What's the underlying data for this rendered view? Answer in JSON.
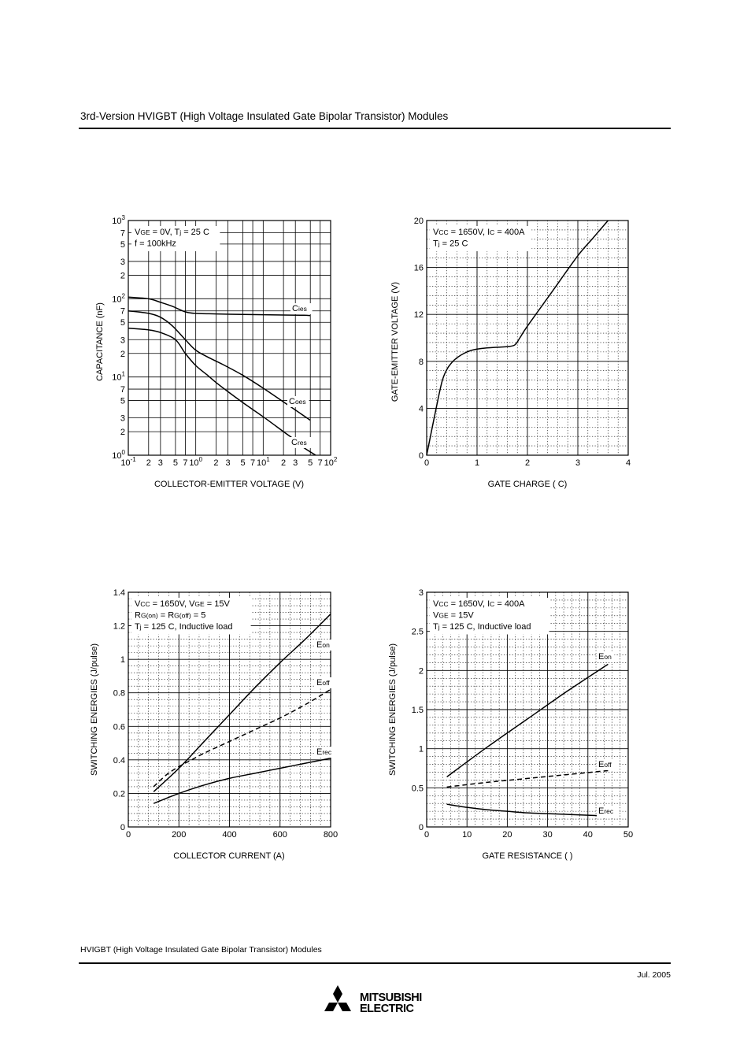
{
  "header": {
    "title": "3rd-Version HVIGBT (High Voltage Insulated Gate Bipolar Transistor) Modules"
  },
  "footer": {
    "text": "HVIGBT (High Voltage Insulated Gate Bipolar Transistor) Modules",
    "date": "Jul. 2005",
    "brand_line1": "MITSUBISHI",
    "brand_line2": "ELECTRIC"
  },
  "chart_data": [
    {
      "id": "capacitance",
      "type": "line",
      "xscale": "log",
      "yscale": "log",
      "xlim": [
        0.1,
        100
      ],
      "ylim": [
        1,
        1000
      ],
      "xlabel": "COLLECTOR-EMITTER VOLTAGE (V)",
      "ylabel": "CAPACITANCE (nF)",
      "annotations": [
        [
          {
            "t": "V"
          },
          {
            "t": "GE",
            "sub": true
          },
          {
            "t": " = 0V, T"
          },
          {
            "t": "j",
            "sub": true
          },
          {
            "t": " = 25 C"
          }
        ],
        [
          {
            "t": "f = 100kHz"
          }
        ]
      ],
      "xticks": [
        {
          "v": 0.1,
          "base": "10",
          "exp": "-1"
        },
        {
          "v": 0.2,
          "l": "2"
        },
        {
          "v": 0.3,
          "l": "3"
        },
        {
          "v": 0.5,
          "l": "5"
        },
        {
          "v": 0.7,
          "l": "7"
        },
        {
          "v": 1,
          "base": "10",
          "exp": "0"
        },
        {
          "v": 2,
          "l": "2"
        },
        {
          "v": 3,
          "l": "3"
        },
        {
          "v": 5,
          "l": "5"
        },
        {
          "v": 7,
          "l": "7"
        },
        {
          "v": 10,
          "base": "10",
          "exp": "1"
        },
        {
          "v": 20,
          "l": "2"
        },
        {
          "v": 30,
          "l": "3"
        },
        {
          "v": 50,
          "l": "5"
        },
        {
          "v": 70,
          "l": "7"
        },
        {
          "v": 100,
          "base": "10",
          "exp": "2"
        }
      ],
      "yticks": [
        {
          "v": 1,
          "base": "10",
          "exp": "0"
        },
        {
          "v": 2,
          "l": "2"
        },
        {
          "v": 3,
          "l": "3"
        },
        {
          "v": 5,
          "l": "5"
        },
        {
          "v": 7,
          "l": "7"
        },
        {
          "v": 10,
          "base": "10",
          "exp": "1"
        },
        {
          "v": 20,
          "l": "2"
        },
        {
          "v": 30,
          "l": "3"
        },
        {
          "v": 50,
          "l": "5"
        },
        {
          "v": 70,
          "l": "7"
        },
        {
          "v": 100,
          "base": "10",
          "exp": "2"
        },
        {
          "v": 200,
          "l": "2"
        },
        {
          "v": 300,
          "l": "3"
        },
        {
          "v": 500,
          "l": "5"
        },
        {
          "v": 700,
          "l": "7"
        },
        {
          "v": 1000,
          "base": "10",
          "exp": "3"
        }
      ],
      "series": [
        {
          "label": "C",
          "sub": "ies",
          "dashed": false,
          "x": [
            0.1,
            0.2,
            0.3,
            0.45,
            0.7,
            1,
            2,
            5,
            10,
            20,
            40,
            50
          ],
          "y": [
            105,
            100,
            90,
            80,
            68,
            65,
            64,
            63,
            62.5,
            62,
            61.5,
            61
          ]
        },
        {
          "label": "C",
          "sub": "oes",
          "dashed": false,
          "x": [
            0.1,
            0.2,
            0.3,
            0.45,
            0.7,
            1,
            1.5,
            2.5,
            5,
            10,
            20,
            50
          ],
          "y": [
            70,
            65,
            58,
            45,
            30,
            22,
            18,
            14.5,
            10.5,
            7.2,
            4.8,
            2.8
          ]
        },
        {
          "label": "C",
          "sub": "res",
          "dashed": false,
          "x": [
            0.1,
            0.2,
            0.3,
            0.5,
            0.7,
            1,
            1.5,
            2,
            3,
            5,
            10,
            20,
            30,
            40,
            60
          ],
          "y": [
            42,
            40,
            37,
            30,
            20,
            14,
            10.5,
            8.5,
            6.5,
            4.7,
            3.1,
            2,
            1.55,
            1.25,
            1
          ]
        }
      ]
    },
    {
      "id": "gate_charge",
      "type": "line",
      "xlim": [
        0,
        4
      ],
      "ylim": [
        0,
        20
      ],
      "xlabel": "GATE CHARGE (  C)",
      "ylabel": "GATE-EMITTER VOLTAGE (V)",
      "annotations": [
        [
          {
            "t": "V"
          },
          {
            "t": "CC",
            "sub": true
          },
          {
            "t": " = 1650V, I"
          },
          {
            "t": "C",
            "sub": true
          },
          {
            "t": " = 400A"
          }
        ],
        [
          {
            "t": "T"
          },
          {
            "t": "j",
            "sub": true
          },
          {
            "t": " = 25 C"
          }
        ]
      ],
      "xticks": [
        {
          "v": 0,
          "l": "0"
        },
        {
          "v": 1,
          "l": "1"
        },
        {
          "v": 2,
          "l": "2"
        },
        {
          "v": 3,
          "l": "3"
        },
        {
          "v": 4,
          "l": "4"
        }
      ],
      "yticks": [
        {
          "v": 0,
          "l": "0"
        },
        {
          "v": 4,
          "l": "4"
        },
        {
          "v": 8,
          "l": "8"
        },
        {
          "v": 12,
          "l": "12"
        },
        {
          "v": 16,
          "l": "16"
        },
        {
          "v": 20,
          "l": "20"
        }
      ],
      "series": [
        {
          "name": "",
          "x": [
            0,
            0.15,
            0.3,
            0.4,
            0.5,
            0.6,
            0.75,
            0.9,
            1.1,
            1.4,
            1.6,
            1.75,
            1.85,
            2,
            2.5,
            3,
            3.3,
            3.6
          ],
          "y": [
            0,
            3.2,
            6.2,
            7.3,
            7.9,
            8.3,
            8.7,
            8.95,
            9.1,
            9.2,
            9.25,
            9.4,
            10,
            11,
            14,
            17,
            18.5,
            20
          ],
          "dashed": false
        }
      ]
    },
    {
      "id": "energy_vs_current",
      "type": "line",
      "xlim": [
        0,
        800
      ],
      "ylim": [
        0,
        1.4
      ],
      "xlabel": "COLLECTOR CURRENT (A)",
      "ylabel": "SWITCHING ENERGIES (J/pulse)",
      "annotations": [
        [
          {
            "t": "V"
          },
          {
            "t": "CC",
            "sub": true
          },
          {
            "t": " = 1650V, V"
          },
          {
            "t": "GE",
            "sub": true
          },
          {
            "t": " =    15V"
          }
        ],
        [
          {
            "t": "R"
          },
          {
            "t": "G(on)",
            "sub": true
          },
          {
            "t": " = R"
          },
          {
            "t": "G(off)",
            "sub": true
          },
          {
            "t": " = 5"
          }
        ],
        [
          {
            "t": "T"
          },
          {
            "t": "j",
            "sub": true
          },
          {
            "t": " = 125 C, Inductive load"
          }
        ]
      ],
      "xticks": [
        {
          "v": 0,
          "l": "0"
        },
        {
          "v": 200,
          "l": "200"
        },
        {
          "v": 400,
          "l": "400"
        },
        {
          "v": 600,
          "l": "600"
        },
        {
          "v": 800,
          "l": "800"
        }
      ],
      "yticks": [
        {
          "v": 0,
          "l": "0"
        },
        {
          "v": 0.2,
          "l": "0.2"
        },
        {
          "v": 0.4,
          "l": "0.4"
        },
        {
          "v": 0.6,
          "l": "0.6"
        },
        {
          "v": 0.8,
          "l": "0.8"
        },
        {
          "v": 1,
          "l": "1"
        },
        {
          "v": 1.2,
          "l": "1.2"
        },
        {
          "v": 1.4,
          "l": "1.4"
        }
      ],
      "series": [
        {
          "label": "E",
          "sub": "on",
          "dashed": false,
          "x": [
            100,
            200,
            300,
            400,
            500,
            600,
            700,
            800
          ],
          "y": [
            0.21,
            0.35,
            0.51,
            0.67,
            0.83,
            0.98,
            1.12,
            1.27
          ]
        },
        {
          "label": "E",
          "sub": "off",
          "dashed": true,
          "x": [
            100,
            150,
            200,
            250,
            300,
            400,
            500,
            600,
            700,
            800
          ],
          "y": [
            0.24,
            0.31,
            0.36,
            0.4,
            0.44,
            0.51,
            0.58,
            0.65,
            0.73,
            0.82
          ]
        },
        {
          "label": "E",
          "sub": "rec",
          "dashed": false,
          "x": [
            100,
            200,
            300,
            400,
            500,
            600,
            700,
            800
          ],
          "y": [
            0.14,
            0.2,
            0.25,
            0.29,
            0.32,
            0.35,
            0.38,
            0.41
          ]
        }
      ]
    },
    {
      "id": "energy_vs_rg",
      "type": "line",
      "xlim": [
        0,
        50
      ],
      "ylim": [
        0,
        3
      ],
      "xlabel": "GATE RESISTANCE (  )",
      "ylabel": "SWITCHING ENERGIES (J/pulse)",
      "annotations": [
        [
          {
            "t": "V"
          },
          {
            "t": "CC",
            "sub": true
          },
          {
            "t": " = 1650V, I"
          },
          {
            "t": "C",
            "sub": true
          },
          {
            "t": " = 400A"
          }
        ],
        [
          {
            "t": "V"
          },
          {
            "t": "GE",
            "sub": true
          },
          {
            "t": " =    15V"
          }
        ],
        [
          {
            "t": "T"
          },
          {
            "t": "j",
            "sub": true
          },
          {
            "t": " = 125 C, Inductive load"
          }
        ]
      ],
      "xticks": [
        {
          "v": 0,
          "l": "0"
        },
        {
          "v": 10,
          "l": "10"
        },
        {
          "v": 20,
          "l": "20"
        },
        {
          "v": 30,
          "l": "30"
        },
        {
          "v": 40,
          "l": "40"
        },
        {
          "v": 50,
          "l": "50"
        }
      ],
      "yticks": [
        {
          "v": 0,
          "l": "0"
        },
        {
          "v": 0.5,
          "l": "0.5"
        },
        {
          "v": 1,
          "l": "1"
        },
        {
          "v": 1.5,
          "l": "1.5"
        },
        {
          "v": 2,
          "l": "2"
        },
        {
          "v": 2.5,
          "l": "2.5"
        },
        {
          "v": 3,
          "l": "3"
        }
      ],
      "series": [
        {
          "label": "E",
          "sub": "on",
          "dashed": false,
          "x": [
            5,
            15,
            25,
            35,
            45
          ],
          "y": [
            0.64,
            1.02,
            1.38,
            1.74,
            2.08
          ]
        },
        {
          "label": "E",
          "sub": "off",
          "dashed": true,
          "x": [
            5,
            15,
            25,
            35,
            45
          ],
          "y": [
            0.51,
            0.57,
            0.62,
            0.67,
            0.72
          ]
        },
        {
          "label": "E",
          "sub": "rec",
          "dashed": false,
          "x": [
            5,
            10,
            15,
            20,
            25,
            30,
            35,
            40,
            45
          ],
          "y": [
            0.29,
            0.25,
            0.22,
            0.2,
            0.18,
            0.17,
            0.16,
            0.15,
            0.14
          ]
        }
      ]
    }
  ]
}
